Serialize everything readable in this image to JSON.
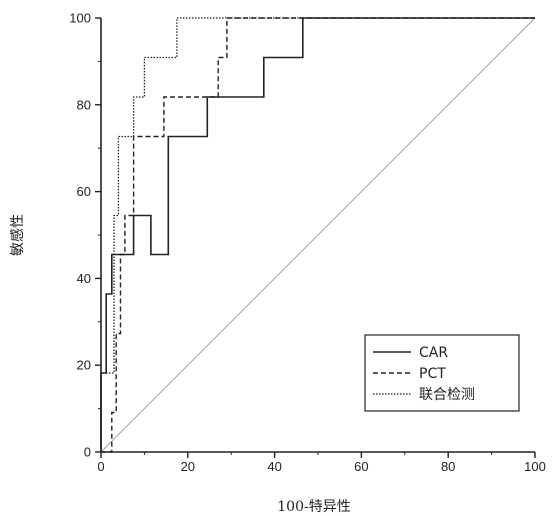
{
  "chart_data": {
    "type": "line",
    "xlabel": "100-特异性",
    "ylabel": "敏感性",
    "xlim": [
      0,
      100
    ],
    "ylim": [
      0,
      100
    ],
    "x_ticks": [
      0,
      20,
      40,
      60,
      80,
      100
    ],
    "y_ticks": [
      0,
      20,
      40,
      60,
      80,
      100
    ],
    "grid": false,
    "legend_position": "bottom-right",
    "reference_line": {
      "x": [
        0,
        100
      ],
      "y": [
        0,
        100
      ]
    },
    "series": [
      {
        "name": "CAR",
        "style": "solid",
        "x": [
          0,
          0,
          1.2,
          1.2,
          2.5,
          2.5,
          7.5,
          7.5,
          11.5,
          11.5,
          15.5,
          15.5,
          24.5,
          24.5,
          37.5,
          37.5,
          46.5,
          46.5,
          100
        ],
        "y": [
          0,
          18.2,
          18.2,
          36.4,
          36.4,
          45.5,
          45.5,
          54.5,
          54.5,
          45.5,
          45.5,
          72.7,
          72.7,
          81.8,
          81.8,
          90.9,
          90.9,
          100,
          100
        ]
      },
      {
        "name": "PCT",
        "style": "dashed",
        "x": [
          0,
          2.5,
          2.5,
          3.5,
          3.5,
          4.5,
          4.5,
          5.5,
          5.5,
          7.5,
          7.5,
          14.5,
          14.5,
          17,
          17,
          27,
          27,
          29,
          29,
          100
        ],
        "y": [
          0,
          0,
          9.1,
          9.1,
          27.3,
          27.3,
          45.5,
          45.5,
          54.5,
          54.5,
          72.7,
          72.7,
          81.8,
          81.8,
          81.8,
          81.8,
          90.9,
          90.9,
          100,
          100
        ]
      },
      {
        "name": "联合检测",
        "style": "dotted",
        "x": [
          0,
          0,
          3,
          3,
          4,
          4,
          7.5,
          7.5,
          10,
          10,
          13,
          13,
          17.5,
          17.5,
          100
        ],
        "y": [
          0,
          18.2,
          18.2,
          54.5,
          54.5,
          72.7,
          72.7,
          81.8,
          81.8,
          90.9,
          90.9,
          90.9,
          90.9,
          100,
          100
        ]
      }
    ],
    "colors": {
      "lines": "#222222",
      "reference": "#9a9a9a",
      "axis": "#222222"
    }
  }
}
